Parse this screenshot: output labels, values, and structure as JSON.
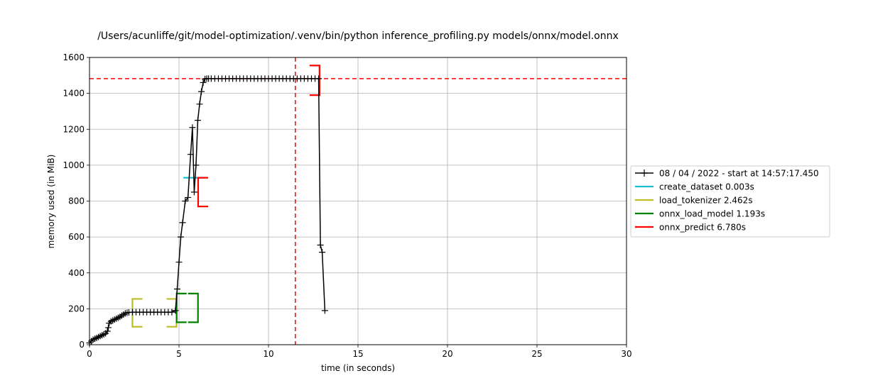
{
  "chart_data": {
    "type": "line",
    "title": "/Users/acunliffe/git/model-optimization/.venv/bin/python inference_profiling.py models/onnx/model.onnx",
    "xlabel": "time (in seconds)",
    "ylabel": "memory used (in MiB)",
    "xlim": [
      0,
      30
    ],
    "ylim": [
      0,
      1600
    ],
    "x_ticks": [
      "0",
      "5",
      "10",
      "15",
      "20",
      "25",
      "30"
    ],
    "y_ticks": [
      "0",
      "200",
      "400",
      "600",
      "800",
      "1000",
      "1200",
      "1400",
      "1600"
    ],
    "grid": true,
    "legend_position": "right",
    "series": [
      {
        "name": "08 / 04 / 2022 - start at 14:57:17.450",
        "color": "#000000",
        "marker": "plus",
        "x": [
          0.0,
          0.1,
          0.2,
          0.3,
          0.4,
          0.5,
          0.6,
          0.7,
          0.8,
          0.9,
          1.0,
          1.05,
          1.1,
          1.2,
          1.3,
          1.4,
          1.5,
          1.6,
          1.7,
          1.8,
          1.9,
          2.0,
          2.1,
          2.2,
          2.4,
          2.6,
          2.8,
          3.0,
          3.2,
          3.4,
          3.6,
          3.8,
          4.0,
          4.2,
          4.4,
          4.6,
          4.8,
          4.9,
          5.0,
          5.1,
          5.2,
          5.35,
          5.5,
          5.65,
          5.75,
          5.85,
          5.95,
          6.05,
          6.15,
          6.25,
          6.35,
          6.45,
          6.55,
          6.65,
          6.8,
          7.0,
          7.2,
          7.4,
          7.6,
          7.8,
          8.0,
          8.2,
          8.4,
          8.6,
          8.8,
          9.0,
          9.2,
          9.4,
          9.6,
          9.8,
          10.0,
          10.2,
          10.4,
          10.6,
          10.8,
          11.0,
          11.2,
          11.4,
          11.6,
          11.8,
          12.0,
          12.2,
          12.4,
          12.6,
          12.8,
          12.9,
          13.0,
          13.15
        ],
        "y": [
          10,
          20,
          28,
          33,
          38,
          43,
          48,
          53,
          58,
          63,
          75,
          95,
          120,
          130,
          135,
          140,
          145,
          150,
          155,
          162,
          168,
          175,
          178,
          180,
          181,
          181,
          181,
          181,
          181,
          181,
          181,
          181,
          181,
          181,
          181,
          181,
          190,
          310,
          460,
          600,
          680,
          800,
          820,
          1060,
          1210,
          850,
          1000,
          1250,
          1340,
          1410,
          1460,
          1480,
          1482,
          1482,
          1482,
          1482,
          1482,
          1482,
          1482,
          1482,
          1482,
          1482,
          1482,
          1482,
          1482,
          1482,
          1482,
          1482,
          1482,
          1482,
          1482,
          1482,
          1482,
          1482,
          1482,
          1482,
          1482,
          1482,
          1482,
          1482,
          1482,
          1482,
          1482,
          1482,
          1482,
          555,
          515,
          190
        ]
      }
    ],
    "brackets": [
      {
        "name": "create_dataset 0.003s",
        "color": "#17becf",
        "x_start": 5.8,
        "x_end": 5.8,
        "y_low": 930,
        "y_high": 930
      },
      {
        "name": "load_tokenizer 2.462s",
        "color": "#bcbd22",
        "x_start": 2.4,
        "x_end": 4.86,
        "y_low": 100,
        "y_high": 255
      },
      {
        "name": "onnx_load_model 1.193s",
        "color": "#008000",
        "x_start": 4.87,
        "x_end": 6.06,
        "y_low": 125,
        "y_high": 285
      },
      {
        "name": "onnx_predict 6.780s",
        "color": "#ff0000",
        "x_start": 6.07,
        "x_end": 12.85,
        "y_low": 770,
        "y_high": 930,
        "y_low_end": 1390,
        "y_high_end": 1555
      }
    ],
    "reference_lines": {
      "horizontal_y": 1482,
      "vertical_x": 11.5,
      "color": "#ff0000"
    }
  }
}
